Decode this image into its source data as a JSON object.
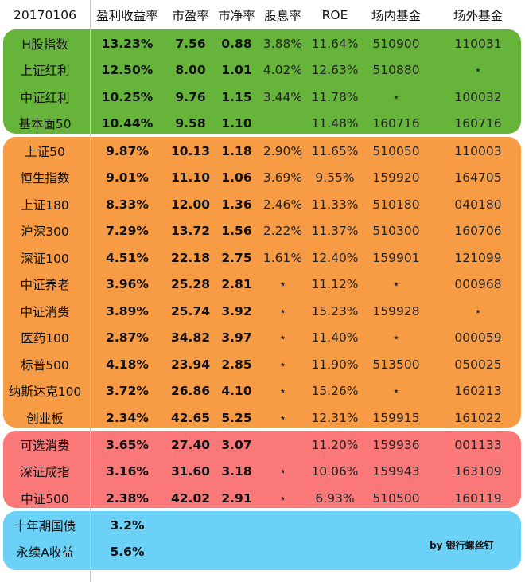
{
  "header": [
    "20170106",
    "盈利收益率",
    "市盈率",
    "市净率",
    "股息率",
    "ROE",
    "场内基金",
    "场外基金"
  ],
  "groups": [
    {
      "color": "#67b43b",
      "rows": [
        [
          "H股指数",
          "13.23%",
          "7.56",
          "0.88",
          "3.88%",
          "11.64%",
          "510900",
          "110031"
        ],
        [
          "上证红利",
          "12.50%",
          "8.00",
          "1.01",
          "4.02%",
          "12.63%",
          "510880",
          "⋆"
        ],
        [
          "中证红利",
          "10.25%",
          "9.76",
          "1.15",
          "3.44%",
          "11.78%",
          "⋆",
          "100032"
        ],
        [
          "基本面50",
          "10.44%",
          "9.58",
          "1.10",
          "",
          "11.48%",
          "160716",
          "160716"
        ]
      ]
    },
    {
      "color": "#f89b45",
      "rows": [
        [
          "上证50",
          "9.87%",
          "10.13",
          "1.18",
          "2.90%",
          "11.65%",
          "510050",
          "110003"
        ],
        [
          "恒生指数",
          "9.01%",
          "11.10",
          "1.06",
          "3.69%",
          "9.55%",
          "159920",
          "164705"
        ],
        [
          "上证180",
          "8.33%",
          "12.00",
          "1.36",
          "2.46%",
          "11.33%",
          "510180",
          "040180"
        ],
        [
          "沪深300",
          "7.29%",
          "13.72",
          "1.56",
          "2.22%",
          "11.37%",
          "510300",
          "160706"
        ],
        [
          "深证100",
          "4.51%",
          "22.18",
          "2.75",
          "1.61%",
          "12.40%",
          "159901",
          "121099"
        ],
        [
          "中证养老",
          "3.96%",
          "25.28",
          "2.81",
          "⋆",
          "11.12%",
          "⋆",
          "000968"
        ],
        [
          "中证消费",
          "3.89%",
          "25.74",
          "3.92",
          "⋆",
          "15.23%",
          "159928",
          "⋆"
        ],
        [
          "医药100",
          "2.87%",
          "34.82",
          "3.97",
          "⋆",
          "11.40%",
          "⋆",
          "000059"
        ],
        [
          "标普500",
          "4.18%",
          "23.94",
          "2.85",
          "⋆",
          "11.90%",
          "513500",
          "050025"
        ],
        [
          "纳斯达克100",
          "3.72%",
          "26.86",
          "4.10",
          "⋆",
          "15.26%",
          "⋆",
          "160213"
        ],
        [
          "创业板",
          "2.34%",
          "42.65",
          "5.25",
          "⋆",
          "12.31%",
          "159915",
          "161022"
        ]
      ]
    },
    {
      "color": "#fb7878",
      "rows": [
        [
          "可选消费",
          "3.65%",
          "27.40",
          "3.07",
          "",
          "11.20%",
          "159936",
          "001133"
        ],
        [
          "深证成指",
          "3.16%",
          "31.60",
          "3.18",
          "⋆",
          "10.06%",
          "159943",
          "163109"
        ],
        [
          "中证500",
          "2.38%",
          "42.02",
          "2.91",
          "⋆",
          "6.93%",
          "510500",
          "160119"
        ]
      ]
    },
    {
      "color": "#6bd1f7",
      "rows": [
        [
          "十年期国债",
          "3.2%",
          "",
          "",
          "",
          "",
          "",
          ""
        ],
        [
          "永续A收益",
          "5.6%",
          "",
          "",
          "",
          "",
          "",
          ""
        ]
      ]
    }
  ],
  "credit": "by 银行螺丝钉"
}
